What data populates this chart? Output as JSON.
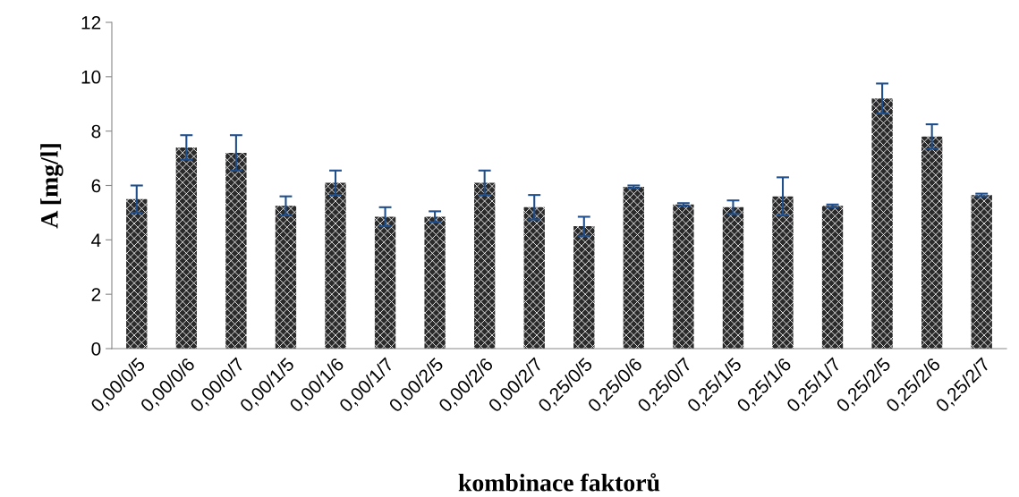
{
  "chart_data": {
    "type": "bar",
    "xlabel": "kombinace faktorů",
    "ylabel": "A [mg/l]",
    "categories": [
      "0,00/0/5",
      "0,00/0/6",
      "0,00/0/7",
      "0,00/1/5",
      "0,00/1/6",
      "0,00/1/7",
      "0,00/2/5",
      "0,00/2/6",
      "0,00/2/7",
      "0,25/0/5",
      "0,25/0/6",
      "0,25/0/7",
      "0,25/1/5",
      "0,25/1/6",
      "0,25/1/7",
      "0,25/2/5",
      "0,25/2/6",
      "0,25/2/7"
    ],
    "series": [
      {
        "color": "#2a2a2a",
        "values": [
          5.5,
          7.4,
          7.2,
          5.25,
          6.1,
          4.85,
          4.85,
          6.1,
          5.2,
          4.5,
          5.95,
          5.3,
          5.2,
          5.6,
          5.25,
          9.2,
          7.8,
          5.65
        ],
        "errors": [
          0.5,
          0.45,
          0.65,
          0.35,
          0.45,
          0.35,
          0.2,
          0.45,
          0.45,
          0.35,
          0.05,
          0.05,
          0.25,
          0.7,
          0.05,
          0.55,
          0.45,
          0.05
        ]
      }
    ],
    "ylim": [
      0,
      12
    ],
    "yticks": [
      0,
      2,
      4,
      6,
      8,
      10,
      12
    ],
    "grid": false
  }
}
